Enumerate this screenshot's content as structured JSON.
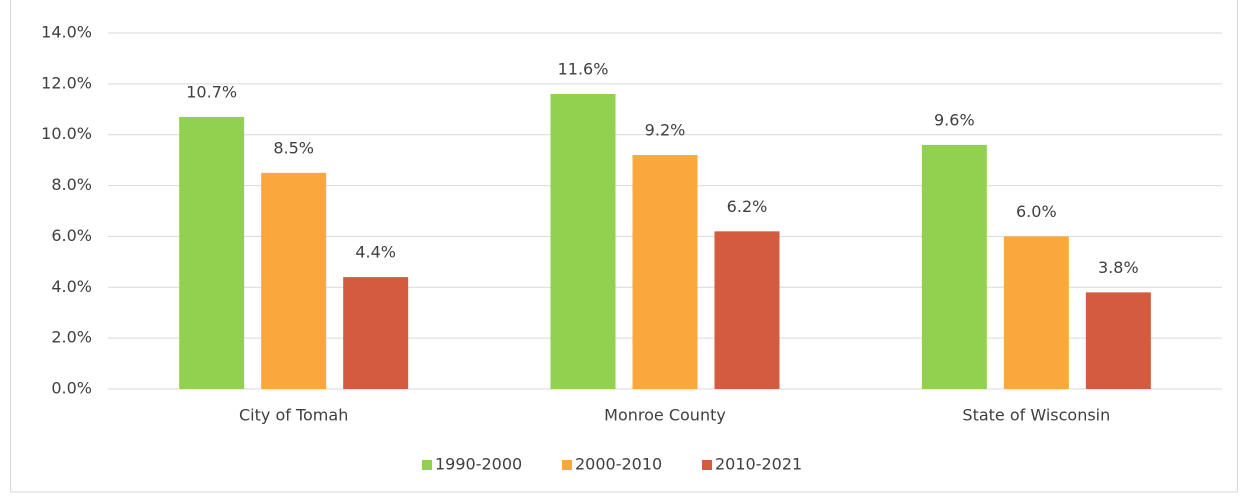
{
  "chart_data": {
    "type": "bar",
    "categories": [
      "City of Tomah",
      "Monroe County",
      "State of Wisconsin"
    ],
    "series": [
      {
        "name": "1990-2000",
        "color": "#92d050",
        "values": [
          10.7,
          11.6,
          9.6
        ],
        "value_labels": [
          "10.7%",
          "11.6%",
          "9.6%"
        ]
      },
      {
        "name": "2000-2010",
        "color": "#f9a83b",
        "values": [
          8.5,
          9.2,
          6.0
        ],
        "value_labels": [
          "8.5%",
          "9.2%",
          "6.0%"
        ]
      },
      {
        "name": "2010-2021",
        "color": "#d45a40",
        "values": [
          4.4,
          6.2,
          3.8
        ],
        "value_labels": [
          "4.4%",
          "6.2%",
          "3.8%"
        ]
      }
    ],
    "ylim": [
      0,
      14
    ],
    "yticks": [
      {
        "value": 0,
        "label": "0.0%"
      },
      {
        "value": 2,
        "label": "2.0%"
      },
      {
        "value": 4,
        "label": "4.0%"
      },
      {
        "value": 6,
        "label": "6.0%"
      },
      {
        "value": 8,
        "label": "8.0%"
      },
      {
        "value": 10,
        "label": "10.0%"
      },
      {
        "value": 12,
        "label": "12.0%"
      },
      {
        "value": 14,
        "label": "14.0%"
      }
    ],
    "grid": true,
    "legend": "bottom"
  }
}
